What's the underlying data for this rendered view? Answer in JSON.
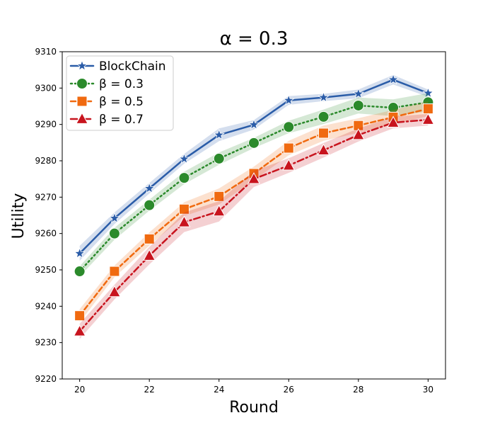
{
  "chart_data": {
    "type": "line",
    "title": "α = 0.3",
    "xlabel": "Round",
    "ylabel": "Utility",
    "xlim": [
      19.5,
      30.5
    ],
    "ylim": [
      9220,
      9310
    ],
    "xticks": [
      20,
      22,
      24,
      26,
      28,
      30
    ],
    "yticks": [
      9220,
      9230,
      9240,
      9250,
      9260,
      9270,
      9280,
      9290,
      9300,
      9310
    ],
    "x": [
      20,
      21,
      22,
      23,
      24,
      25,
      26,
      27,
      28,
      29,
      30
    ],
    "legend_position": "top-left",
    "series": [
      {
        "name": "BlockChain",
        "color": "#2a5ca8",
        "marker": "star",
        "linestyle": "solid",
        "values": [
          9254.5,
          9264.2,
          9272.4,
          9280.5,
          9287.1,
          9289.9,
          9296.6,
          9297.4,
          9298.4,
          9302.3,
          9298.6
        ],
        "lower": [
          9252.5,
          9262.6,
          9271.0,
          9279.2,
          9285.4,
          9288.6,
          9295.4,
          9296.4,
          9297.2,
          9301.0,
          9297.6
        ],
        "upper": [
          9256.6,
          9265.8,
          9273.9,
          9281.9,
          9288.9,
          9291.2,
          9297.8,
          9298.4,
          9299.6,
          9303.6,
          9299.6
        ]
      },
      {
        "name": "β = 0.3",
        "color": "#2b8a2b",
        "marker": "circle",
        "linestyle": "dotted",
        "values": [
          9249.6,
          9260.0,
          9267.8,
          9275.3,
          9280.6,
          9284.9,
          9289.3,
          9292.1,
          9295.2,
          9294.6,
          9296.1
        ],
        "lower": [
          9248.2,
          9258.3,
          9266.3,
          9273.6,
          9278.9,
          9283.5,
          9287.6,
          9290.1,
          9293.0,
          9292.3,
          9293.6
        ],
        "upper": [
          9251.0,
          9261.6,
          9269.3,
          9277.0,
          9282.3,
          9286.3,
          9291.0,
          9294.1,
          9297.4,
          9296.9,
          9298.6
        ]
      },
      {
        "name": "β = 0.5",
        "color": "#f06a10",
        "marker": "square",
        "linestyle": "dashed",
        "values": [
          9237.4,
          9249.6,
          9258.5,
          9266.7,
          9270.2,
          9276.5,
          9283.5,
          9287.6,
          9289.7,
          9292.0,
          9294.3
        ],
        "lower": [
          9235.6,
          9248.0,
          9256.7,
          9264.8,
          9268.0,
          9274.6,
          9281.5,
          9285.5,
          9287.7,
          9290.0,
          9292.3
        ],
        "upper": [
          9239.2,
          9251.2,
          9260.3,
          9268.6,
          9272.4,
          9278.4,
          9285.5,
          9289.7,
          9291.7,
          9294.0,
          9296.3
        ]
      },
      {
        "name": "β = 0.7",
        "color": "#c8141e",
        "marker": "triangle",
        "linestyle": "dashdot",
        "values": [
          9233.1,
          9243.9,
          9253.9,
          9263.1,
          9266.1,
          9275.0,
          9278.7,
          9282.9,
          9287.1,
          9290.5,
          9291.3
        ],
        "lower": [
          9231.0,
          9241.9,
          9251.5,
          9260.4,
          9263.3,
          9272.8,
          9276.7,
          9280.9,
          9285.3,
          9288.9,
          9289.7
        ],
        "upper": [
          9235.2,
          9245.9,
          9256.3,
          9265.8,
          9268.9,
          9277.2,
          9280.7,
          9284.9,
          9288.9,
          9292.1,
          9292.9
        ]
      }
    ]
  }
}
